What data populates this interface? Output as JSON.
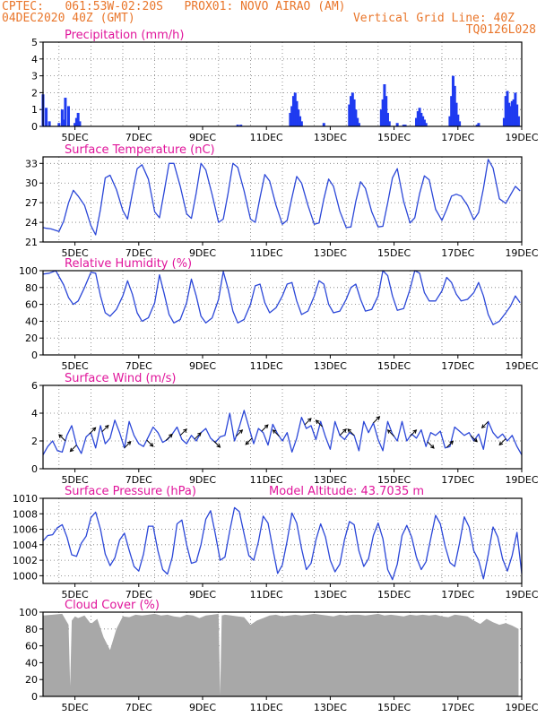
{
  "header": {
    "line1_left": "CPTEC:   061:53W-02:20S   PROX01: NOVO AIRAO (AM)",
    "line2_left": "04DEC2020 40Z (GMT)",
    "line2_right": "Vertical Grid Line: 40Z",
    "line3_right": "TQ0126L028",
    "color": "#e9762b"
  },
  "colors": {
    "title": "#e0159b",
    "line": "#2b47d8",
    "bar": "#1f3bf0",
    "cloud": "#a8a8a8",
    "frame": "#000000"
  },
  "x_ticks": [
    "5DEC",
    "7DEC",
    "9DEC",
    "11DEC",
    "13DEC",
    "15DEC",
    "17DEC",
    "19DEC"
  ],
  "chart_data": [
    {
      "type": "bar",
      "title": "Precipitation (mm/h)",
      "ylim": [
        0,
        5
      ],
      "yticks": [
        "0",
        "1",
        "2",
        "3",
        "4",
        "5"
      ],
      "x": [
        4.0,
        4.1,
        4.2,
        4.5,
        4.6,
        4.65,
        4.7,
        4.8,
        5.0,
        5.05,
        5.1,
        5.15,
        10.1,
        10.2,
        11.75,
        11.8,
        11.85,
        11.9,
        11.95,
        12.0,
        12.05,
        12.1,
        12.8,
        13.6,
        13.65,
        13.7,
        13.75,
        13.8,
        13.85,
        13.9,
        14.6,
        14.65,
        14.7,
        14.75,
        14.8,
        14.85,
        15.1,
        15.3,
        15.35,
        15.7,
        15.75,
        15.8,
        15.85,
        15.9,
        15.95,
        16.0,
        16.75,
        16.8,
        16.85,
        16.9,
        16.95,
        17.0,
        17.05,
        17.6,
        17.65,
        18.45,
        18.5,
        18.55,
        18.6,
        18.65,
        18.7,
        18.75,
        18.8,
        18.85,
        18.9
      ],
      "values": [
        1.9,
        1.1,
        0.3,
        0.2,
        1.0,
        0.4,
        1.7,
        1.2,
        0.2,
        0.5,
        0.8,
        0.3,
        0.1,
        0.1,
        0.8,
        1.2,
        1.8,
        2.0,
        1.5,
        1.0,
        0.6,
        0.3,
        0.2,
        1.3,
        1.8,
        2.0,
        1.6,
        1.0,
        0.5,
        0.2,
        1.0,
        1.6,
        2.5,
        1.8,
        0.8,
        0.3,
        0.2,
        0.1,
        0.1,
        0.5,
        0.9,
        1.1,
        0.8,
        0.6,
        0.4,
        0.2,
        0.6,
        1.8,
        3.0,
        2.4,
        1.4,
        0.7,
        0.3,
        0.1,
        0.2,
        0.5,
        1.8,
        2.1,
        1.4,
        1.2,
        1.5,
        1.6,
        2.0,
        1.3,
        0.6
      ],
      "xlim": [
        4,
        19
      ]
    },
    {
      "type": "line",
      "title": "Surface Temperature (nC)",
      "ylim": [
        21,
        34
      ],
      "yticks": [
        "21",
        "24",
        "27",
        "30",
        "33"
      ],
      "x": [
        4.0,
        4.1,
        4.25,
        4.5,
        4.65,
        4.8,
        4.95,
        5.1,
        5.3,
        5.5,
        5.65,
        5.8,
        5.95,
        6.1,
        6.3,
        6.5,
        6.65,
        6.8,
        6.95,
        7.1,
        7.3,
        7.5,
        7.65,
        7.8,
        7.95,
        8.1,
        8.3,
        8.5,
        8.65,
        8.8,
        8.95,
        9.1,
        9.3,
        9.5,
        9.65,
        9.8,
        9.95,
        10.1,
        10.3,
        10.5,
        10.65,
        10.8,
        10.95,
        11.1,
        11.3,
        11.5,
        11.65,
        11.8,
        11.95,
        12.1,
        12.3,
        12.5,
        12.65,
        12.8,
        12.95,
        13.1,
        13.3,
        13.5,
        13.65,
        13.8,
        13.95,
        14.1,
        14.3,
        14.5,
        14.65,
        14.8,
        14.95,
        15.1,
        15.3,
        15.5,
        15.65,
        15.8,
        15.95,
        16.1,
        16.3,
        16.5,
        16.65,
        16.8,
        16.95,
        17.1,
        17.3,
        17.5,
        17.65,
        17.8,
        17.95,
        18.1,
        18.3,
        18.5,
        18.65,
        18.8,
        18.95
      ],
      "values": [
        23.2,
        23.1,
        23.0,
        22.6,
        24.2,
        27.0,
        28.9,
        28.0,
        26.6,
        23.5,
        22.1,
        26.0,
        30.8,
        31.2,
        29.0,
        25.8,
        24.5,
        28.5,
        32.2,
        32.8,
        30.6,
        25.6,
        24.7,
        28.8,
        33.0,
        33.0,
        29.5,
        25.3,
        24.6,
        28.5,
        33.0,
        32.0,
        28.2,
        24.0,
        24.5,
        28.5,
        33.0,
        32.4,
        28.8,
        24.5,
        24.0,
        27.8,
        31.3,
        30.3,
        26.6,
        23.7,
        24.3,
        27.8,
        31.0,
        30.0,
        26.6,
        23.7,
        23.9,
        27.6,
        30.6,
        29.5,
        25.7,
        23.2,
        23.3,
        27.2,
        30.2,
        29.2,
        25.6,
        23.3,
        23.4,
        27.0,
        30.8,
        32.2,
        27.2,
        23.9,
        24.7,
        28.4,
        31.1,
        30.5,
        26.0,
        24.3,
        26.0,
        28.0,
        28.3,
        28.0,
        26.6,
        24.4,
        25.5,
        29.2,
        33.6,
        32.3,
        27.6,
        26.9,
        28.2,
        29.5,
        28.8
      ]
    },
    {
      "type": "line",
      "title": "Relative Humidity (%)",
      "ylim": [
        0,
        100
      ],
      "yticks": [
        "0",
        "20",
        "40",
        "60",
        "80",
        "100"
      ],
      "x": [
        4.0,
        4.2,
        4.4,
        4.65,
        4.8,
        4.95,
        5.1,
        5.3,
        5.5,
        5.65,
        5.8,
        5.95,
        6.1,
        6.3,
        6.5,
        6.65,
        6.8,
        6.95,
        7.1,
        7.3,
        7.5,
        7.65,
        7.8,
        7.95,
        8.1,
        8.3,
        8.5,
        8.65,
        8.8,
        8.95,
        9.1,
        9.3,
        9.5,
        9.65,
        9.8,
        9.95,
        10.1,
        10.3,
        10.5,
        10.65,
        10.8,
        10.95,
        11.1,
        11.3,
        11.5,
        11.65,
        11.8,
        11.95,
        12.1,
        12.3,
        12.5,
        12.65,
        12.8,
        12.95,
        13.1,
        13.3,
        13.5,
        13.65,
        13.8,
        13.95,
        14.1,
        14.3,
        14.5,
        14.65,
        14.8,
        14.95,
        15.1,
        15.3,
        15.5,
        15.65,
        15.8,
        15.95,
        16.1,
        16.3,
        16.5,
        16.65,
        16.8,
        16.95,
        17.1,
        17.3,
        17.5,
        17.65,
        17.8,
        17.95,
        18.1,
        18.3,
        18.5,
        18.65,
        18.8,
        18.95
      ],
      "values": [
        96,
        97,
        100,
        83,
        68,
        60,
        64,
        80,
        98,
        97,
        70,
        50,
        46,
        54,
        70,
        88,
        72,
        50,
        40,
        44,
        62,
        95,
        72,
        48,
        38,
        42,
        62,
        90,
        70,
        46,
        38,
        44,
        66,
        99,
        78,
        52,
        38,
        42,
        60,
        82,
        84,
        62,
        50,
        56,
        70,
        84,
        86,
        64,
        48,
        52,
        70,
        88,
        84,
        60,
        50,
        52,
        66,
        80,
        84,
        66,
        52,
        54,
        70,
        100,
        94,
        70,
        53,
        55,
        78,
        100,
        97,
        74,
        64,
        64,
        76,
        92,
        86,
        72,
        64,
        66,
        74,
        86,
        70,
        48,
        36,
        40,
        50,
        58,
        70,
        62
      ]
    },
    {
      "type": "line",
      "title": "Surface Wind (m/s)",
      "ylim": [
        0,
        6
      ],
      "yticks": [
        "0",
        "2",
        "4",
        "6"
      ],
      "x": [
        4.0,
        4.15,
        4.3,
        4.45,
        4.6,
        4.75,
        4.9,
        5.05,
        5.2,
        5.35,
        5.5,
        5.65,
        5.8,
        5.95,
        6.1,
        6.25,
        6.4,
        6.55,
        6.7,
        6.85,
        7.0,
        7.15,
        7.3,
        7.45,
        7.6,
        7.75,
        7.9,
        8.05,
        8.2,
        8.35,
        8.5,
        8.65,
        8.8,
        8.95,
        9.1,
        9.25,
        9.4,
        9.55,
        9.7,
        9.85,
        10.0,
        10.15,
        10.3,
        10.45,
        10.6,
        10.75,
        10.9,
        11.05,
        11.2,
        11.35,
        11.5,
        11.65,
        11.8,
        11.95,
        12.1,
        12.25,
        12.4,
        12.55,
        12.7,
        12.85,
        13.0,
        13.15,
        13.3,
        13.45,
        13.6,
        13.75,
        13.9,
        14.05,
        14.2,
        14.35,
        14.5,
        14.65,
        14.8,
        14.95,
        15.1,
        15.25,
        15.4,
        15.55,
        15.7,
        15.85,
        16.0,
        16.15,
        16.3,
        16.45,
        16.6,
        16.75,
        16.9,
        17.05,
        17.2,
        17.35,
        17.5,
        17.65,
        17.8,
        17.95,
        18.1,
        18.25,
        18.4,
        18.55,
        18.7,
        18.85,
        19.0
      ],
      "values": [
        1.0,
        1.6,
        2.0,
        1.3,
        1.2,
        2.4,
        3.1,
        1.7,
        1.1,
        2.3,
        2.6,
        1.5,
        3.1,
        1.8,
        2.2,
        3.5,
        2.6,
        1.5,
        3.4,
        2.4,
        1.8,
        1.6,
        2.3,
        3.0,
        2.6,
        1.9,
        2.1,
        2.5,
        3.0,
        2.1,
        1.8,
        2.4,
        2.0,
        2.6,
        2.9,
        2.2,
        1.9,
        2.3,
        2.4,
        4.0,
        2.0,
        3.0,
        4.2,
        3.0,
        1.8,
        2.9,
        2.6,
        1.7,
        3.2,
        2.5,
        2.0,
        2.6,
        1.2,
        2.2,
        3.7,
        2.9,
        3.1,
        2.1,
        3.4,
        2.3,
        1.4,
        3.4,
        2.4,
        2.1,
        2.6,
        2.4,
        1.3,
        3.4,
        2.6,
        3.3,
        2.1,
        1.3,
        3.4,
        2.5,
        2.0,
        3.4,
        2.0,
        2.5,
        2.2,
        2.8,
        1.6,
        2.6,
        2.4,
        2.7,
        1.5,
        1.6,
        3.0,
        2.7,
        2.4,
        2.6,
        2.0,
        2.5,
        1.4,
        3.4,
        2.6,
        2.2,
        2.5,
        2.0,
        2.4,
        1.6,
        1.0
      ],
      "arrows": [
        {
          "x": 4.7,
          "dir": [
            -1,
            1
          ]
        },
        {
          "x": 5.05,
          "dir": [
            -1,
            -1
          ]
        },
        {
          "x": 5.45,
          "dir": [
            1,
            1
          ]
        },
        {
          "x": 5.85,
          "dir": [
            1,
            1
          ]
        },
        {
          "x": 6.55,
          "dir": [
            1,
            1
          ]
        },
        {
          "x": 7.25,
          "dir": [
            1,
            -1
          ]
        },
        {
          "x": 7.85,
          "dir": [
            1,
            1
          ]
        },
        {
          "x": 8.3,
          "dir": [
            1,
            1
          ]
        },
        {
          "x": 8.75,
          "dir": [
            1,
            1
          ]
        },
        {
          "x": 9.35,
          "dir": [
            1,
            -1
          ]
        },
        {
          "x": 10.05,
          "dir": [
            1,
            1
          ]
        },
        {
          "x": 10.55,
          "dir": [
            -1,
            -1
          ]
        },
        {
          "x": 10.85,
          "dir": [
            1,
            1
          ]
        },
        {
          "x": 11.4,
          "dir": [
            -1,
            1
          ]
        },
        {
          "x": 12.2,
          "dir": [
            1,
            1
          ]
        },
        {
          "x": 12.75,
          "dir": [
            -1,
            1
          ]
        },
        {
          "x": 13.3,
          "dir": [
            1,
            1
          ]
        },
        {
          "x": 13.75,
          "dir": [
            -1,
            1
          ]
        },
        {
          "x": 14.35,
          "dir": [
            1,
            1
          ]
        },
        {
          "x": 15.0,
          "dir": [
            -1,
            1
          ]
        },
        {
          "x": 15.5,
          "dir": [
            1,
            1
          ]
        },
        {
          "x": 16.05,
          "dir": [
            1,
            -1
          ]
        },
        {
          "x": 16.65,
          "dir": [
            1,
            1
          ]
        },
        {
          "x": 17.4,
          "dir": [
            1,
            -1
          ]
        },
        {
          "x": 17.95,
          "dir": [
            -1,
            -1
          ]
        },
        {
          "x": 18.5,
          "dir": [
            -1,
            -1
          ]
        }
      ]
    },
    {
      "type": "line",
      "title": "Surface Pressure (hPa)",
      "subtitle": "Model Altitude: 43.7035 m",
      "ylim": [
        999,
        1010
      ],
      "yticks": [
        "1000",
        "1002",
        "1004",
        "1006",
        "1008",
        "1010"
      ],
      "x": [
        4.0,
        4.15,
        4.3,
        4.45,
        4.6,
        4.75,
        4.9,
        5.05,
        5.2,
        5.35,
        5.5,
        5.65,
        5.8,
        5.95,
        6.1,
        6.25,
        6.4,
        6.55,
        6.7,
        6.85,
        7.0,
        7.15,
        7.3,
        7.45,
        7.6,
        7.75,
        7.9,
        8.05,
        8.2,
        8.35,
        8.5,
        8.65,
        8.8,
        8.95,
        9.1,
        9.25,
        9.4,
        9.55,
        9.7,
        9.85,
        10.0,
        10.15,
        10.3,
        10.45,
        10.6,
        10.75,
        10.9,
        11.05,
        11.2,
        11.35,
        11.5,
        11.65,
        11.8,
        11.95,
        12.1,
        12.25,
        12.4,
        12.55,
        12.7,
        12.85,
        13.0,
        13.15,
        13.3,
        13.45,
        13.6,
        13.75,
        13.9,
        14.05,
        14.2,
        14.35,
        14.5,
        14.65,
        14.8,
        14.95,
        15.1,
        15.25,
        15.4,
        15.55,
        15.7,
        15.85,
        16.0,
        16.15,
        16.3,
        16.45,
        16.6,
        16.75,
        16.9,
        17.05,
        17.2,
        17.35,
        17.5,
        17.65,
        17.8,
        17.95,
        18.1,
        18.25,
        18.4,
        18.55,
        18.7,
        18.85,
        19.0
      ],
      "values": [
        1004.5,
        1005.2,
        1005.3,
        1006.2,
        1006.6,
        1005.0,
        1002.7,
        1002.5,
        1004.2,
        1005.1,
        1007.5,
        1008.2,
        1006.0,
        1002.8,
        1001.3,
        1002.3,
        1004.6,
        1005.5,
        1003.3,
        1001.2,
        1000.6,
        1002.8,
        1006.4,
        1006.4,
        1003.2,
        1000.8,
        1000.2,
        1002.4,
        1006.7,
        1007.2,
        1004.0,
        1001.6,
        1001.8,
        1004.0,
        1007.3,
        1008.4,
        1005.4,
        1002.0,
        1002.4,
        1005.8,
        1008.8,
        1008.3,
        1005.4,
        1002.6,
        1002.0,
        1004.4,
        1007.7,
        1006.8,
        1003.5,
        1000.3,
        1001.4,
        1004.5,
        1008.1,
        1006.8,
        1003.5,
        1000.8,
        1001.6,
        1004.6,
        1006.7,
        1005.0,
        1002.0,
        1000.5,
        1001.5,
        1004.7,
        1007.0,
        1006.6,
        1003.2,
        1001.2,
        1002.2,
        1005.2,
        1006.8,
        1004.8,
        1000.8,
        999.5,
        1001.5,
        1005.2,
        1006.5,
        1005.0,
        1002.4,
        1000.8,
        1001.8,
        1004.8,
        1007.8,
        1006.7,
        1003.8,
        1001.7,
        1001.2,
        1004.2,
        1007.6,
        1006.3,
        1003.2,
        1002.0,
        999.6,
        1002.7,
        1006.3,
        1005.0,
        1002.2,
        1000.6,
        1002.6,
        1005.6,
        1000.3
      ]
    },
    {
      "type": "area",
      "title": "Cloud Cover (%)",
      "ylim": [
        0,
        100
      ],
      "yticks": [
        "0",
        "20",
        "40",
        "60",
        "80",
        "100"
      ],
      "x": [
        4.0,
        4.3,
        4.6,
        4.8,
        4.85,
        4.9,
        5.0,
        5.1,
        5.3,
        5.5,
        5.7,
        5.9,
        6.1,
        6.3,
        6.5,
        6.7,
        6.9,
        7.1,
        7.3,
        7.5,
        7.7,
        7.9,
        8.1,
        8.3,
        8.5,
        8.7,
        8.9,
        9.1,
        9.3,
        9.5,
        9.55,
        9.6,
        9.7,
        9.9,
        10.1,
        10.3,
        10.5,
        10.7,
        10.9,
        11.1,
        11.3,
        11.5,
        11.7,
        11.9,
        12.1,
        12.3,
        12.5,
        12.7,
        12.9,
        13.1,
        13.3,
        13.5,
        13.7,
        13.9,
        14.1,
        14.3,
        14.5,
        14.7,
        14.9,
        15.1,
        15.3,
        15.5,
        15.7,
        15.9,
        16.1,
        16.3,
        16.5,
        16.7,
        16.9,
        17.1,
        17.3,
        17.5,
        17.7,
        17.9,
        18.1,
        18.3,
        18.5,
        18.7,
        18.9
      ],
      "values": [
        96,
        97,
        98,
        85,
        12,
        90,
        95,
        93,
        96,
        86,
        92,
        70,
        55,
        80,
        95,
        94,
        97,
        96,
        97,
        98,
        96,
        97,
        95,
        94,
        97,
        96,
        93,
        96,
        97,
        98,
        2,
        96,
        97,
        96,
        95,
        94,
        85,
        90,
        93,
        96,
        97,
        95,
        96,
        97,
        96,
        97,
        98,
        97,
        96,
        95,
        97,
        96,
        97,
        97,
        96,
        97,
        98,
        96,
        97,
        96,
        95,
        97,
        96,
        97,
        96,
        97,
        95,
        94,
        97,
        96,
        95,
        90,
        86,
        92,
        88,
        85,
        87,
        84,
        80
      ]
    }
  ]
}
